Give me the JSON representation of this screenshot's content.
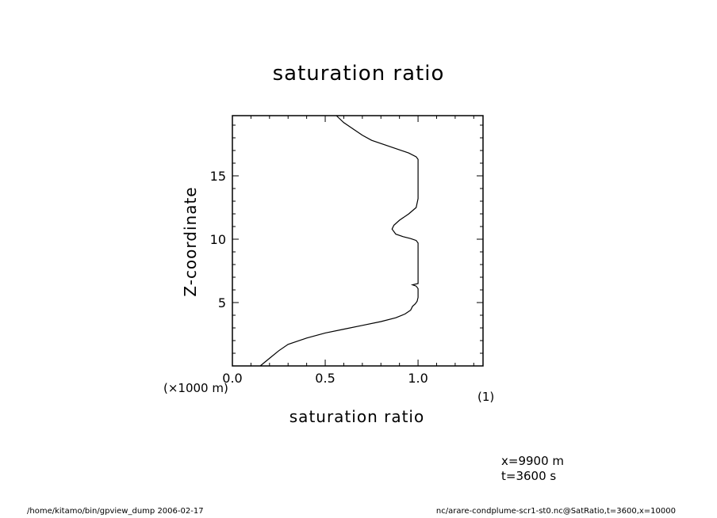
{
  "chart_data": {
    "type": "line",
    "title": "saturation ratio",
    "xlabel": "saturation ratio",
    "ylabel": "Z-coordinate",
    "xunit_label": "(1)",
    "yunit_label": "(×1000 m)",
    "xlim": [
      0.0,
      1.35
    ],
    "ylim": [
      0,
      19.75
    ],
    "xticks": [
      0.0,
      0.5,
      1.0
    ],
    "xtick_labels": [
      "0.0",
      "0.5",
      "1.0"
    ],
    "yticks": [
      5,
      10,
      15
    ],
    "ytick_labels": [
      "5",
      "10",
      "15"
    ],
    "grid": false,
    "series": [
      {
        "x": [
          0.15,
          0.2,
          0.25,
          0.3,
          0.4,
          0.5,
          0.6,
          0.7,
          0.8,
          0.88,
          0.93,
          0.96,
          0.97,
          0.985,
          0.995,
          1.0,
          1.0,
          0.99,
          0.97,
          1.0,
          1.0,
          1.0,
          0.99,
          0.96,
          0.92,
          0.88,
          0.86,
          0.87,
          0.9,
          0.95,
          0.99,
          1.0,
          1.0,
          1.0,
          0.99,
          0.95,
          0.85,
          0.75,
          0.7,
          0.66,
          0.6,
          0.56
        ],
        "y": [
          0.0,
          0.6,
          1.2,
          1.7,
          2.2,
          2.6,
          2.9,
          3.2,
          3.5,
          3.8,
          4.1,
          4.4,
          4.7,
          4.9,
          5.1,
          5.4,
          6.1,
          6.3,
          6.4,
          6.5,
          8.0,
          9.7,
          9.9,
          10.05,
          10.2,
          10.4,
          10.8,
          11.1,
          11.5,
          12.0,
          12.5,
          13.2,
          15.0,
          16.3,
          16.5,
          16.8,
          17.3,
          17.8,
          18.2,
          18.6,
          19.2,
          19.75
        ]
      }
    ]
  },
  "annotations": {
    "x_position": "x=9900  m",
    "time": "t=3600  s"
  },
  "footer": {
    "left": "/home/kitamo/bin/gpview_dump   2006-02-17",
    "right": "nc/arare-condplume-scr1-st0.nc@SatRatio,t=3600,x=10000"
  }
}
